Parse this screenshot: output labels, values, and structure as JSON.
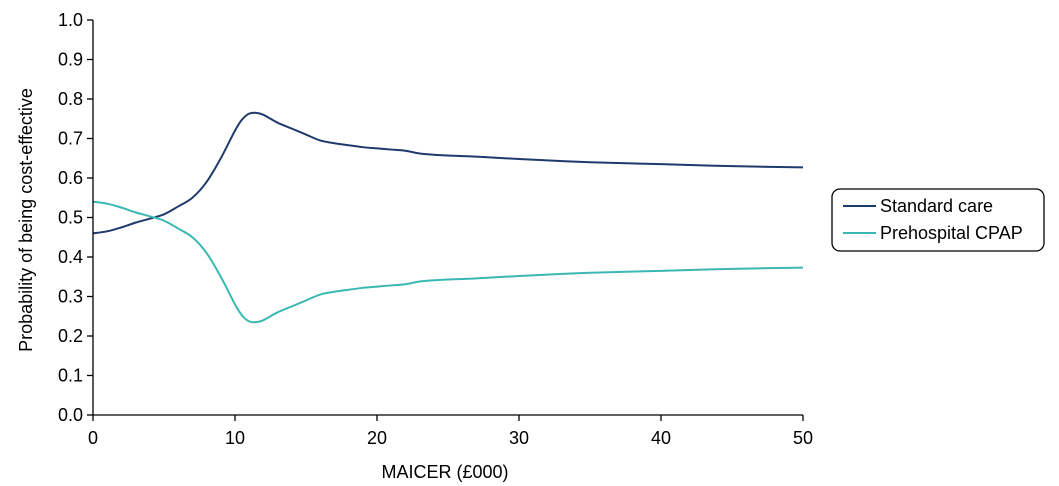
{
  "colors": {
    "standard_care": "#1f3b6e",
    "prehospital_cpap": "#3bb8b3",
    "axis": "#000000"
  },
  "chart_data": {
    "type": "line",
    "title": "",
    "xlabel": "MAICER (£000)",
    "ylabel": "Probability of being cost-effective",
    "xlim": [
      0,
      50
    ],
    "ylim": [
      0.0,
      1.0
    ],
    "xticks": [
      "0",
      "10",
      "20",
      "30",
      "40",
      "50"
    ],
    "yticks": [
      "0.0",
      "0.1",
      "0.2",
      "0.3",
      "0.4",
      "0.5",
      "0.6",
      "0.7",
      "0.8",
      "0.9",
      "1.0"
    ],
    "legend_position": "right",
    "series": [
      {
        "name": "Standard care",
        "color": "#1f3b6e",
        "x": [
          0,
          1,
          2,
          3,
          4,
          5,
          6,
          7,
          8,
          9,
          10,
          10.5,
          11,
          11.5,
          12,
          13,
          14,
          15,
          16,
          17,
          18,
          19,
          20,
          21,
          22,
          23,
          24,
          25,
          27,
          30,
          35,
          40,
          45,
          50
        ],
        "y": [
          0.46,
          0.465,
          0.475,
          0.487,
          0.497,
          0.508,
          0.528,
          0.55,
          0.59,
          0.65,
          0.72,
          0.748,
          0.763,
          0.765,
          0.76,
          0.74,
          0.725,
          0.71,
          0.695,
          0.688,
          0.683,
          0.678,
          0.675,
          0.672,
          0.669,
          0.662,
          0.659,
          0.657,
          0.654,
          0.648,
          0.64,
          0.635,
          0.63,
          0.627
        ]
      },
      {
        "name": "Prehospital CPAP",
        "color": "#3bb8b3",
        "x": [
          0,
          1,
          2,
          3,
          4,
          5,
          6,
          7,
          8,
          9,
          10,
          10.5,
          11,
          11.5,
          12,
          13,
          14,
          15,
          16,
          17,
          18,
          19,
          20,
          21,
          22,
          23,
          24,
          25,
          27,
          30,
          35,
          40,
          45,
          50
        ],
        "y": [
          0.54,
          0.535,
          0.525,
          0.513,
          0.503,
          0.492,
          0.472,
          0.45,
          0.41,
          0.35,
          0.28,
          0.252,
          0.237,
          0.235,
          0.24,
          0.26,
          0.275,
          0.29,
          0.305,
          0.312,
          0.317,
          0.322,
          0.325,
          0.328,
          0.331,
          0.338,
          0.341,
          0.343,
          0.346,
          0.352,
          0.36,
          0.365,
          0.37,
          0.373
        ]
      }
    ]
  }
}
